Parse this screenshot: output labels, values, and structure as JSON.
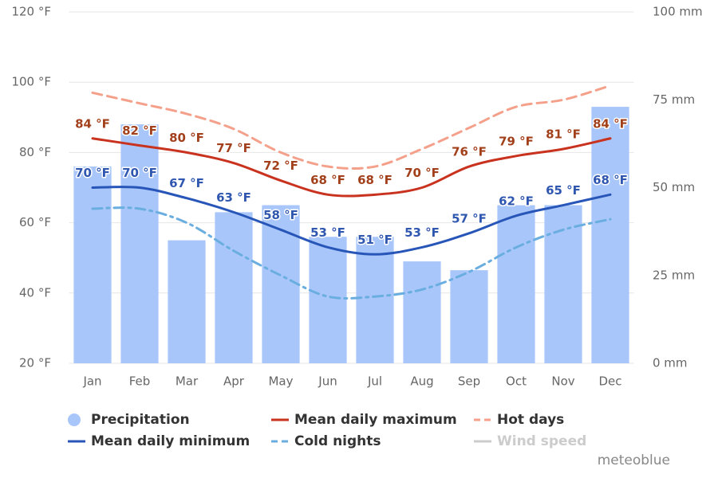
{
  "chart_data": {
    "type": "combo",
    "categories": [
      "Jan",
      "Feb",
      "Mar",
      "Apr",
      "May",
      "Jun",
      "Jul",
      "Aug",
      "Sep",
      "Oct",
      "Nov",
      "Dec"
    ],
    "ylim": [
      20,
      120
    ],
    "yticks": [
      {
        "value": 20,
        "label": "20 °F"
      },
      {
        "value": 40,
        "label": "40 °F"
      },
      {
        "value": 60,
        "label": "60 °F"
      },
      {
        "value": 80,
        "label": "80 °F"
      },
      {
        "value": 100,
        "label": "100 °F"
      },
      {
        "value": 120,
        "label": "120 °F"
      }
    ],
    "y2lim": [
      0,
      100
    ],
    "y2ticks": [
      {
        "value": 0,
        "label": "0 mm"
      },
      {
        "value": 25,
        "label": "25 mm"
      },
      {
        "value": 50,
        "label": "50 mm"
      },
      {
        "value": 75,
        "label": "75 mm"
      },
      {
        "value": 100,
        "label": "100 mm"
      }
    ],
    "grid": true,
    "series": [
      {
        "name": "Precipitation",
        "type": "bar",
        "axis": "y2",
        "color": "#a8c6fa",
        "values": [
          56,
          68,
          35,
          43,
          45,
          36,
          36,
          29,
          26.5,
          45,
          45,
          73
        ]
      },
      {
        "name": "Mean daily maximum",
        "type": "line",
        "color": "#c8321e",
        "label_color": "#a3401c",
        "values": [
          84,
          82,
          80,
          77,
          72,
          68,
          68,
          70,
          76,
          79,
          81,
          84
        ],
        "value_labels": [
          "84 °F",
          "82 °F",
          "80 °F",
          "77 °F",
          "72 °F",
          "68 °F",
          "68 °F",
          "70 °F",
          "76 °F",
          "79 °F",
          "81 °F",
          "84 °F"
        ]
      },
      {
        "name": "Hot days",
        "type": "line",
        "color": "#f4a08a",
        "dash": "12,7",
        "values": [
          97,
          94,
          91,
          86.7,
          80,
          76,
          76,
          81,
          87,
          93,
          95,
          99
        ]
      },
      {
        "name": "Mean daily minimum",
        "type": "line",
        "color": "#2856b8",
        "label_color": "#2f57b0",
        "values": [
          70,
          70,
          67,
          63,
          58,
          53,
          51,
          53,
          57,
          62,
          65,
          68
        ],
        "value_labels": [
          "70 °F",
          "70 °F",
          "67 °F",
          "63 °F",
          "58 °F",
          "53 °F",
          "51 °F",
          "53 °F",
          "57 °F",
          "62 °F",
          "65 °F",
          "68 °F"
        ]
      },
      {
        "name": "Cold nights",
        "type": "line",
        "color": "#6aaee0",
        "dash": "12,6,3,6",
        "values": [
          64,
          64,
          60,
          52,
          45,
          39,
          39,
          41,
          46,
          53,
          58,
          61
        ]
      },
      {
        "name": "Wind speed",
        "type": "line",
        "color": "#cccccc",
        "hidden": true,
        "values": [
          null,
          null,
          null,
          null,
          null,
          null,
          null,
          null,
          null,
          null,
          null,
          null
        ]
      }
    ],
    "credit": "meteoblue"
  }
}
